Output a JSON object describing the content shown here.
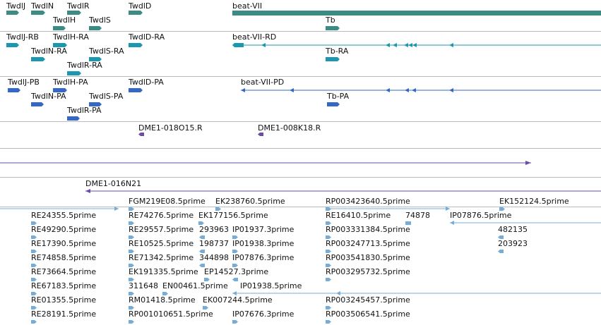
{
  "colors": {
    "gene": "#3c8c86",
    "transcript": "#1b98b0",
    "protein": "#3468c8",
    "clone": "#6a4ca6",
    "est": "#76acd8",
    "separator": "#b7bcc4"
  },
  "tracks": {
    "genes": {
      "labels": [
        "TwdlJ",
        "TwdlN",
        "TwdlR",
        "TwdlD",
        "beat-VII",
        "TwdlH",
        "TwdlS",
        "Tb"
      ]
    },
    "transcripts": {
      "labels": [
        "TwdlJ-RB",
        "TwdlH-RA",
        "TwdlD-RA",
        "beat-VII-RD",
        "TwdlN-RA",
        "TwdlS-RA",
        "Tb-RA",
        "TwdlR-RA"
      ]
    },
    "proteins": {
      "labels": [
        "TwdlJ-PB",
        "TwdlH-PA",
        "TwdlD-PA",
        "beat-VII-PD",
        "TwdlN-PA",
        "TwdlS-PA",
        "Tb-PA",
        "TwdlR-PA"
      ]
    },
    "clones": {
      "labels": [
        "DME1-018O15.R",
        "DME1-008K18.R",
        "DME1-016N21"
      ]
    },
    "ests": {
      "labels": [
        "FGM219E08.5prime",
        "EK238760.5prime",
        "RP003423640.5prime",
        "EK152124.5prime",
        "RE24355.5prime",
        "RE74276.5prime",
        "EK177156.5prime",
        "RE16410.5prime",
        "74878",
        "IP07876.5prime",
        "RE49290.5prime",
        "RE29557.5prime",
        "293963",
        "IP01937.3prime",
        "RP003331384.5prime",
        "482135",
        "RE17390.5prime",
        "RE10525.5prime",
        "198737",
        "IP01938.3prime",
        "RP003247713.5prime",
        "203923",
        "RE74858.5prime",
        "RE71342.5prime",
        "344898",
        "IP07876.3prime",
        "RP003541830.5prime",
        "RE73664.5prime",
        "EK191335.5prime",
        "EP14527.3prime",
        "RP003295732.5prime",
        "RE67183.5prime",
        "311648",
        "EN00461.5prime",
        "IP01938.5prime",
        "RE01355.5prime",
        "RM01418.5prime",
        "EK007244.5prime",
        "RP003245457.5prime",
        "RE28191.5prime",
        "RP001010651.5prime",
        "IP07676.3prime",
        "RP003506541.5prime"
      ]
    }
  }
}
